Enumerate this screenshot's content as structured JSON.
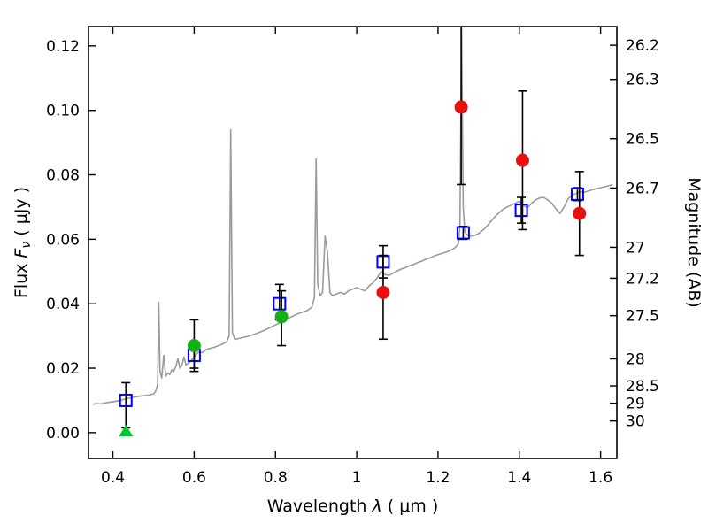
{
  "figure": {
    "background": "#ffffff",
    "axes_color": "#000000"
  },
  "chart_data": {
    "type": "line",
    "title": "",
    "xlabel": {
      "prefix": "Wavelength",
      "symbol": "λ",
      "unit": "( μm )"
    },
    "ylabel_left": {
      "prefix": "Flux",
      "symbol": "F",
      "subscript": "ν",
      "unit": "( μJy )"
    },
    "ylabel_right": "Magnitude (AB)",
    "xlim": [
      0.34,
      1.64
    ],
    "ylim": [
      -0.008,
      0.126
    ],
    "grid": false,
    "legend": null,
    "x_ticks": [
      {
        "value": 0.4,
        "label": "0.4"
      },
      {
        "value": 0.6,
        "label": "0.6"
      },
      {
        "value": 0.8,
        "label": "0.8"
      },
      {
        "value": 1.0,
        "label": "1"
      },
      {
        "value": 1.2,
        "label": "1.2"
      },
      {
        "value": 1.4,
        "label": "1.4"
      },
      {
        "value": 1.6,
        "label": "1.6"
      }
    ],
    "y_ticks_left": [
      {
        "value": 0.0,
        "label": "0.00"
      },
      {
        "value": 0.02,
        "label": "0.02"
      },
      {
        "value": 0.04,
        "label": "0.04"
      },
      {
        "value": 0.06,
        "label": "0.06"
      },
      {
        "value": 0.08,
        "label": "0.08"
      },
      {
        "value": 0.1,
        "label": "0.10"
      },
      {
        "value": 0.12,
        "label": "0.12"
      }
    ],
    "y_ticks_right": [
      {
        "flux": 0.1202,
        "label": "26.2"
      },
      {
        "flux": 0.1096,
        "label": "26.3"
      },
      {
        "flux": 0.0912,
        "label": "26.5"
      },
      {
        "flux": 0.0759,
        "label": "26.7"
      },
      {
        "flux": 0.0575,
        "label": "27"
      },
      {
        "flux": 0.0479,
        "label": "27.2"
      },
      {
        "flux": 0.0363,
        "label": "27.5"
      },
      {
        "flux": 0.0229,
        "label": "28"
      },
      {
        "flux": 0.0145,
        "label": "28.5"
      },
      {
        "flux": 0.00912,
        "label": "29"
      },
      {
        "flux": 0.00363,
        "label": "30"
      }
    ],
    "spectrum": {
      "name": "model-spectrum",
      "color": "#9b9b9b",
      "xy": [
        [
          0.35,
          0.0088
        ],
        [
          0.36,
          0.009
        ],
        [
          0.37,
          0.0089
        ],
        [
          0.38,
          0.0092
        ],
        [
          0.39,
          0.0094
        ],
        [
          0.4,
          0.0096
        ],
        [
          0.41,
          0.0098
        ],
        [
          0.42,
          0.0101
        ],
        [
          0.43,
          0.0104
        ],
        [
          0.44,
          0.0107
        ],
        [
          0.45,
          0.011
        ],
        [
          0.46,
          0.0112
        ],
        [
          0.47,
          0.0114
        ],
        [
          0.48,
          0.0115
        ],
        [
          0.49,
          0.0117
        ],
        [
          0.5,
          0.012
        ],
        [
          0.505,
          0.0128
        ],
        [
          0.51,
          0.015
        ],
        [
          0.513,
          0.0405
        ],
        [
          0.516,
          0.019
        ],
        [
          0.52,
          0.017
        ],
        [
          0.525,
          0.024
        ],
        [
          0.53,
          0.0175
        ],
        [
          0.535,
          0.0185
        ],
        [
          0.54,
          0.018
        ],
        [
          0.545,
          0.0195
        ],
        [
          0.55,
          0.019
        ],
        [
          0.555,
          0.0205
        ],
        [
          0.56,
          0.023
        ],
        [
          0.565,
          0.02
        ],
        [
          0.57,
          0.021
        ],
        [
          0.575,
          0.0235
        ],
        [
          0.58,
          0.021
        ],
        [
          0.59,
          0.022
        ],
        [
          0.6,
          0.0235
        ],
        [
          0.61,
          0.025
        ],
        [
          0.62,
          0.0248
        ],
        [
          0.63,
          0.0258
        ],
        [
          0.64,
          0.0262
        ],
        [
          0.65,
          0.0265
        ],
        [
          0.66,
          0.027
        ],
        [
          0.67,
          0.0275
        ],
        [
          0.68,
          0.0282
        ],
        [
          0.686,
          0.03
        ],
        [
          0.69,
          0.094
        ],
        [
          0.694,
          0.031
        ],
        [
          0.7,
          0.029
        ],
        [
          0.71,
          0.0292
        ],
        [
          0.72,
          0.0295
        ],
        [
          0.73,
          0.0298
        ],
        [
          0.74,
          0.0302
        ],
        [
          0.75,
          0.0306
        ],
        [
          0.76,
          0.0311
        ],
        [
          0.77,
          0.0316
        ],
        [
          0.78,
          0.0322
        ],
        [
          0.79,
          0.0328
        ],
        [
          0.8,
          0.0334
        ],
        [
          0.81,
          0.034
        ],
        [
          0.82,
          0.0347
        ],
        [
          0.83,
          0.0354
        ],
        [
          0.84,
          0.036
        ],
        [
          0.85,
          0.0366
        ],
        [
          0.86,
          0.0371
        ],
        [
          0.87,
          0.0375
        ],
        [
          0.88,
          0.038
        ],
        [
          0.89,
          0.039
        ],
        [
          0.896,
          0.042
        ],
        [
          0.9,
          0.085
        ],
        [
          0.904,
          0.046
        ],
        [
          0.91,
          0.0425
        ],
        [
          0.916,
          0.0435
        ],
        [
          0.922,
          0.061
        ],
        [
          0.928,
          0.056
        ],
        [
          0.934,
          0.0435
        ],
        [
          0.94,
          0.0425
        ],
        [
          0.95,
          0.043
        ],
        [
          0.96,
          0.0435
        ],
        [
          0.97,
          0.043
        ],
        [
          0.98,
          0.044
        ],
        [
          0.99,
          0.0445
        ],
        [
          1.0,
          0.045
        ],
        [
          1.01,
          0.0445
        ],
        [
          1.02,
          0.044
        ],
        [
          1.03,
          0.0455
        ],
        [
          1.04,
          0.0465
        ],
        [
          1.05,
          0.048
        ],
        [
          1.06,
          0.05
        ],
        [
          1.07,
          0.049
        ],
        [
          1.08,
          0.0488
        ],
        [
          1.09,
          0.0495
        ],
        [
          1.1,
          0.0502
        ],
        [
          1.11,
          0.0508
        ],
        [
          1.12,
          0.0512
        ],
        [
          1.13,
          0.0518
        ],
        [
          1.14,
          0.0522
        ],
        [
          1.15,
          0.0528
        ],
        [
          1.16,
          0.0532
        ],
        [
          1.17,
          0.0538
        ],
        [
          1.18,
          0.0542
        ],
        [
          1.19,
          0.0548
        ],
        [
          1.2,
          0.0552
        ],
        [
          1.21,
          0.0556
        ],
        [
          1.22,
          0.056
        ],
        [
          1.23,
          0.0565
        ],
        [
          1.24,
          0.0572
        ],
        [
          1.25,
          0.0585
        ],
        [
          1.254,
          0.064
        ],
        [
          1.258,
          0.1255
        ],
        [
          1.262,
          0.07
        ],
        [
          1.266,
          0.0625
        ],
        [
          1.27,
          0.0615
        ],
        [
          1.28,
          0.061
        ],
        [
          1.29,
          0.0612
        ],
        [
          1.3,
          0.0618
        ],
        [
          1.31,
          0.0628
        ],
        [
          1.32,
          0.064
        ],
        [
          1.33,
          0.0655
        ],
        [
          1.34,
          0.067
        ],
        [
          1.35,
          0.0682
        ],
        [
          1.36,
          0.0693
        ],
        [
          1.37,
          0.07
        ],
        [
          1.38,
          0.0706
        ],
        [
          1.39,
          0.0712
        ],
        [
          1.4,
          0.0718
        ],
        [
          1.41,
          0.0705
        ],
        [
          1.42,
          0.0698
        ],
        [
          1.43,
          0.0712
        ],
        [
          1.44,
          0.0722
        ],
        [
          1.45,
          0.0728
        ],
        [
          1.46,
          0.073
        ],
        [
          1.47,
          0.0722
        ],
        [
          1.48,
          0.0712
        ],
        [
          1.49,
          0.0695
        ],
        [
          1.5,
          0.068
        ],
        [
          1.51,
          0.07
        ],
        [
          1.52,
          0.0725
        ],
        [
          1.53,
          0.0738
        ],
        [
          1.54,
          0.0742
        ],
        [
          1.55,
          0.0748
        ],
        [
          1.56,
          0.0746
        ],
        [
          1.57,
          0.075
        ],
        [
          1.58,
          0.0754
        ],
        [
          1.59,
          0.0757
        ],
        [
          1.6,
          0.076
        ],
        [
          1.61,
          0.0763
        ],
        [
          1.62,
          0.0766
        ],
        [
          1.63,
          0.077
        ]
      ]
    },
    "series": [
      {
        "name": "model-photometry-squares",
        "marker": "square-open",
        "color": "#0000ff",
        "errorbar_color": "#000000",
        "points": [
          {
            "x": 0.432,
            "y": 0.01,
            "err_lo": 0.0085,
            "err_hi": 0.0055
          },
          {
            "x": 0.6,
            "y": 0.024,
            "err_lo": 0.004,
            "err_hi": 0.004
          },
          {
            "x": 0.81,
            "y": 0.04,
            "err_lo": 0.005,
            "err_hi": 0.006
          },
          {
            "x": 1.065,
            "y": 0.053,
            "err_lo": 0.005,
            "err_hi": 0.005
          },
          {
            "x": 1.262,
            "y": 0.062,
            "err_lo": 0.002,
            "err_hi": 0.002
          },
          {
            "x": 1.405,
            "y": 0.069,
            "err_lo": 0.004,
            "err_hi": 0.004
          },
          {
            "x": 1.543,
            "y": 0.074,
            "err_lo": 0.002,
            "err_hi": 0.002
          }
        ]
      },
      {
        "name": "observed-optical-circles",
        "marker": "circle",
        "color": "#16b016",
        "errorbar_color": "#000000",
        "points": [
          {
            "x": 0.6,
            "y": 0.027,
            "err_lo": 0.008,
            "err_hi": 0.008
          },
          {
            "x": 0.815,
            "y": 0.036,
            "err_lo": 0.009,
            "err_hi": 0.008
          }
        ]
      },
      {
        "name": "observed-ir-circles",
        "marker": "circle",
        "color": "#e81010",
        "errorbar_color": "#000000",
        "points": [
          {
            "x": 1.065,
            "y": 0.0435,
            "err_lo": 0.0145,
            "err_hi": 0.0115
          },
          {
            "x": 1.257,
            "y": 0.101,
            "err_lo": 0.024,
            "err_hi": 0.027
          },
          {
            "x": 1.408,
            "y": 0.0845,
            "err_lo": 0.0215,
            "err_hi": 0.0215
          },
          {
            "x": 1.548,
            "y": 0.068,
            "err_lo": 0.013,
            "err_hi": 0.013
          }
        ]
      },
      {
        "name": "upper-limit-triangle",
        "marker": "triangle-up",
        "color": "#00c832",
        "errorbar_color": "#000000",
        "points": [
          {
            "x": 0.432,
            "y": 0.0005
          }
        ]
      }
    ]
  }
}
